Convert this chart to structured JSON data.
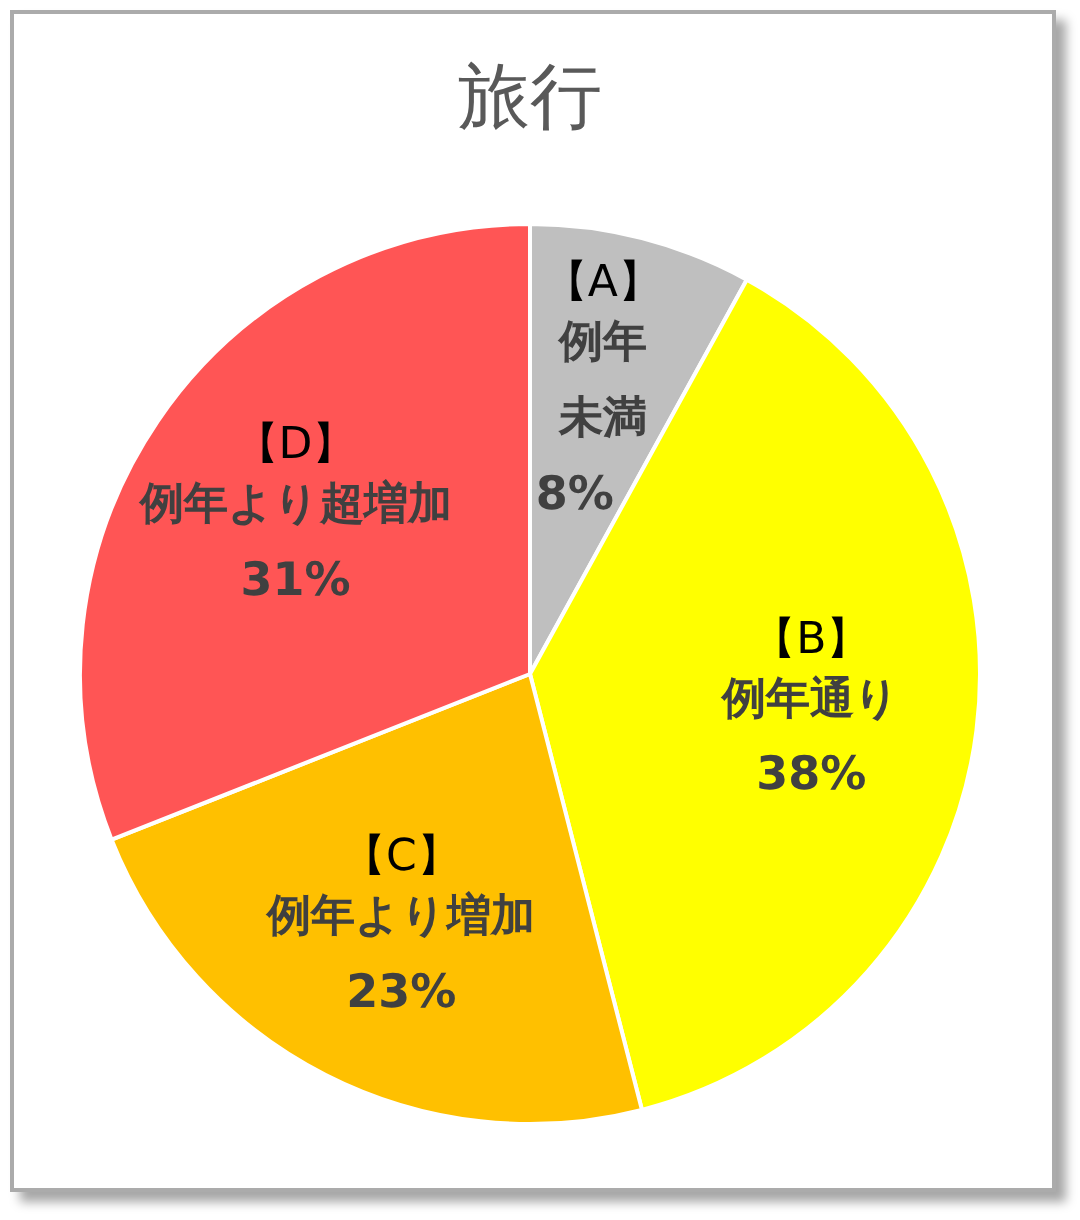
{
  "chart_data": {
    "type": "pie",
    "title": "旅行",
    "categories": [
      "【A】例年未満",
      "【B】例年通り",
      "【C】例年より増加",
      "【D】例年より超増加"
    ],
    "values": [
      8,
      38,
      23,
      31
    ],
    "colors": [
      "#bfbfbf",
      "#ffff00",
      "#ffc000",
      "#ff5555"
    ],
    "value_labels": [
      "8%",
      "38%",
      "23%",
      "31%"
    ]
  }
}
